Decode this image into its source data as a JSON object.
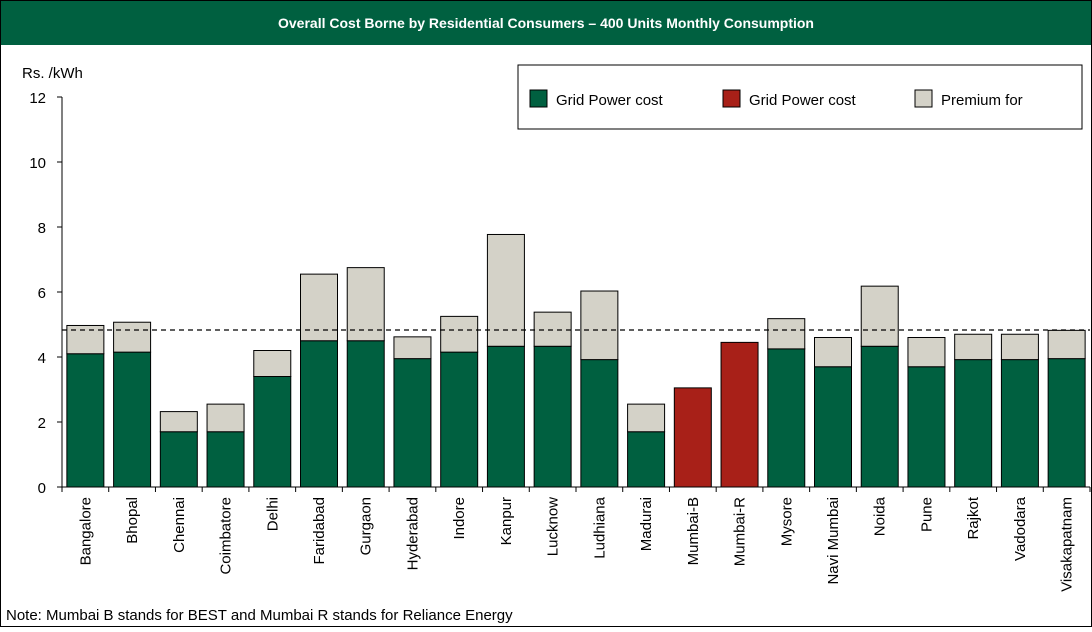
{
  "chart_data": {
    "type": "stacked_bar",
    "title": "Overall Cost Borne by Residential Consumers – 400 Units Monthly Consumption",
    "y_label": "Rs. /kWh",
    "note": "Note: Mumbai B stands for BEST and Mumbai R stands for Reliance Energy",
    "categories": [
      "Bangalore",
      "Bhopal",
      "Chennai",
      "Coimbatore",
      "Delhi",
      "Faridabad",
      "Gurgaon",
      "Hyderabad",
      "Indore",
      "Kanpur",
      "Lucknow",
      "Ludhiana",
      "Madurai",
      "Mumbai-B",
      "Mumbai-R",
      "Mysore",
      "Navi Mumbai",
      "Noida",
      "Pune",
      "Rajkot",
      "Vadodara",
      "Visakapatnam"
    ],
    "series": [
      {
        "name": "Grid Power cost",
        "color": "#006040",
        "values": [
          4.1,
          4.15,
          1.7,
          1.7,
          3.4,
          4.5,
          4.5,
          3.95,
          4.15,
          4.33,
          4.33,
          3.92,
          1.7,
          null,
          null,
          4.25,
          3.7,
          4.33,
          3.7,
          3.92,
          3.92,
          3.95
        ]
      },
      {
        "name": "Grid Power cost",
        "color": "#a82018",
        "values": [
          null,
          null,
          null,
          null,
          null,
          null,
          null,
          null,
          null,
          null,
          null,
          null,
          null,
          3.05,
          4.45,
          null,
          null,
          null,
          null,
          null,
          null,
          null
        ]
      },
      {
        "name": "Premium for",
        "color": "#d4d2c8",
        "values": [
          0.87,
          0.92,
          0.62,
          0.85,
          0.8,
          2.05,
          2.25,
          0.67,
          1.1,
          3.44,
          1.05,
          2.11,
          0.85,
          null,
          null,
          0.93,
          0.9,
          1.85,
          0.9,
          0.78,
          0.78,
          0.87
        ]
      }
    ],
    "reference_line": 4.83,
    "ylim": [
      0,
      12
    ],
    "yticks": [
      0,
      2,
      4,
      6,
      8,
      10,
      12
    ]
  }
}
